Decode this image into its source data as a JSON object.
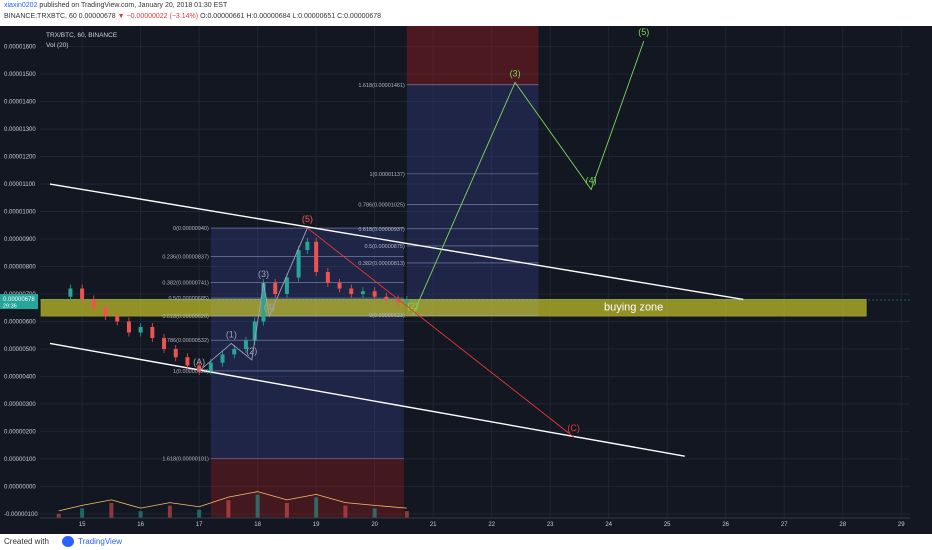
{
  "header": {
    "user_line": "published on TradingView.com, January 20, 2018 01:30 EST",
    "username": "xiaxin0202",
    "symbol_line": "BINANCE:TRXBTC, 60  0.00000678",
    "change": "▼ −0.00000022 (−3.14%)",
    "ohlc": "O:0.00000661  H:0.00000684  L:0.00000651  C:0.00000678"
  },
  "legend": {
    "symbol": "TRX/BTC, 60, BINANCE",
    "volume": "Vol (20)"
  },
  "footer": {
    "created_with": "Created with",
    "brand": "TradingView"
  },
  "colors": {
    "background": "#131722",
    "up": "#26a69a",
    "down": "#ef5350",
    "wave_green": "#7cd85a",
    "wave_red": "#e53935",
    "zone": "#e6e22a",
    "trend": "#ffffff"
  },
  "chart_data": {
    "type": "candlestick",
    "title": "TRX/BTC, 60, BINANCE",
    "x_ticks": [
      "15",
      "16",
      "17",
      "18",
      "19",
      "20",
      "21",
      "22",
      "23",
      "24",
      "25",
      "26",
      "27",
      "28",
      "29"
    ],
    "y_ticks": [
      "0.00001600",
      "0.00001500",
      "0.00001400",
      "0.00001300",
      "0.00001200",
      "0.00001100",
      "0.00001000",
      "0.00000900",
      "0.00000800",
      "0.00000700",
      "0.00000600",
      "0.00000500",
      "0.00000400",
      "0.00000300",
      "0.00000200",
      "0.00000100",
      "0.00000000",
      "-0.00000100"
    ],
    "ylim": [
      -1.15e-06,
      1.675e-05
    ],
    "last_price": "0.00000678",
    "countdown": "29:36",
    "price_path": [
      {
        "x": 14.6,
        "y": 6.9e-06
      },
      {
        "x": 14.8,
        "y": 7.2e-06
      },
      {
        "x": 15.0,
        "y": 6.8e-06
      },
      {
        "x": 15.2,
        "y": 6.5e-06
      },
      {
        "x": 15.4,
        "y": 6.2e-06
      },
      {
        "x": 15.6,
        "y": 6e-06
      },
      {
        "x": 15.8,
        "y": 5.6e-06
      },
      {
        "x": 16.0,
        "y": 5.8e-06
      },
      {
        "x": 16.2,
        "y": 5.4e-06
      },
      {
        "x": 16.4,
        "y": 5e-06
      },
      {
        "x": 16.6,
        "y": 4.7e-06
      },
      {
        "x": 16.8,
        "y": 4.4e-06
      },
      {
        "x": 17.0,
        "y": 4.2e-06
      },
      {
        "x": 17.2,
        "y": 4.5e-06
      },
      {
        "x": 17.4,
        "y": 4.8e-06
      },
      {
        "x": 17.6,
        "y": 5e-06
      },
      {
        "x": 17.8,
        "y": 5.3e-06
      },
      {
        "x": 17.95,
        "y": 6e-06
      },
      {
        "x": 18.1,
        "y": 7.4e-06
      },
      {
        "x": 18.3,
        "y": 7e-06
      },
      {
        "x": 18.5,
        "y": 7.6e-06
      },
      {
        "x": 18.7,
        "y": 8.6e-06
      },
      {
        "x": 18.85,
        "y": 8.9e-06
      },
      {
        "x": 19.0,
        "y": 7.8e-06
      },
      {
        "x": 19.2,
        "y": 7.4e-06
      },
      {
        "x": 19.4,
        "y": 7.2e-06
      },
      {
        "x": 19.6,
        "y": 7e-06
      },
      {
        "x": 19.8,
        "y": 7.1e-06
      },
      {
        "x": 20.0,
        "y": 6.9e-06
      },
      {
        "x": 20.2,
        "y": 6.8e-06
      },
      {
        "x": 20.4,
        "y": 6.7e-06
      },
      {
        "x": 20.55,
        "y": 6.78e-06
      }
    ],
    "volume_path": [
      {
        "x": 14.6,
        "y": -1e-06
      },
      {
        "x": 15.0,
        "y": -8e-07
      },
      {
        "x": 15.5,
        "y": -6e-07
      },
      {
        "x": 16.0,
        "y": -9e-07
      },
      {
        "x": 16.5,
        "y": -7e-07
      },
      {
        "x": 17.0,
        "y": -8.5e-07
      },
      {
        "x": 17.5,
        "y": -5e-07
      },
      {
        "x": 18.0,
        "y": -3e-07
      },
      {
        "x": 18.5,
        "y": -6e-07
      },
      {
        "x": 19.0,
        "y": -4e-07
      },
      {
        "x": 19.5,
        "y": -7e-07
      },
      {
        "x": 20.0,
        "y": -8e-07
      },
      {
        "x": 20.55,
        "y": -9e-07
      }
    ],
    "buying_zone": {
      "label": "buying zone",
      "y_top": 6.8e-06,
      "y_bottom": 6.2e-06,
      "x_start": 14.3,
      "x_end": 28.4
    },
    "fib_left": [
      {
        "label": "0(0.00000940)",
        "y": 9.4e-06
      },
      {
        "label": "0.236(0.00000837)",
        "y": 8.37e-06
      },
      {
        "label": "0.382(0.00000741)",
        "y": 7.41e-06
      },
      {
        "label": "0.5(0.00000685)",
        "y": 6.85e-06
      },
      {
        "label": "0.618(0.00000620)",
        "y": 6.2e-06
      },
      {
        "label": "0.786(0.00000532)",
        "y": 5.32e-06
      },
      {
        "label": "1(0.00000420)",
        "y": 4.2e-06
      },
      {
        "label": "1.618(0.00000101)",
        "y": 1.01e-06
      }
    ],
    "fib_right": [
      {
        "label": "1.618(0.00001461)",
        "y": 1.461e-05
      },
      {
        "label": "1(0.00001137)",
        "y": 1.137e-05
      },
      {
        "label": "0.786(0.00001025)",
        "y": 1.025e-05
      },
      {
        "label": "0.618(0.00000937)",
        "y": 9.37e-06
      },
      {
        "label": "0.5(0.00000875)",
        "y": 8.75e-06
      },
      {
        "label": "0.382(0.00000813)",
        "y": 8.13e-06
      },
      {
        "label": "0(0.00000623)",
        "y": 6.23e-06
      }
    ],
    "wave_bullish": [
      {
        "label": "(2)",
        "x": 20.65,
        "y": 6.23e-06
      },
      {
        "label": "(3)",
        "x": 22.4,
        "y": 1.47e-05
      },
      {
        "label": "(4)",
        "x": 23.7,
        "y": 1.08e-05
      },
      {
        "label": "(5)",
        "x": 24.6,
        "y": 1.62e-05
      }
    ],
    "wave_bearish": [
      {
        "label": "(5)",
        "x": 18.85,
        "y": 9.4e-06
      },
      {
        "label": "(C)",
        "x": 23.4,
        "y": 1.8e-06
      }
    ],
    "wave_history": [
      {
        "label": "(A)",
        "x": 17.0,
        "y": 4.2e-06
      },
      {
        "label": "(1)",
        "x": 17.55,
        "y": 5.2e-06
      },
      {
        "label": "(2)",
        "x": 17.9,
        "y": 4.6e-06
      },
      {
        "label": "(3)",
        "x": 18.1,
        "y": 7.4e-06
      },
      {
        "label": "(4)",
        "x": 18.2,
        "y": 6.2e-06
      },
      {
        "label": "(5)",
        "x": 18.85,
        "y": 9.4e-06
      }
    ],
    "trendlines": [
      {
        "x1": 14.45,
        "y1": 1.1e-05,
        "x2": 26.3,
        "y2": 6.8e-06
      },
      {
        "x1": 14.45,
        "y1": 5.2e-06,
        "x2": 25.3,
        "y2": 1.1e-06
      }
    ]
  }
}
